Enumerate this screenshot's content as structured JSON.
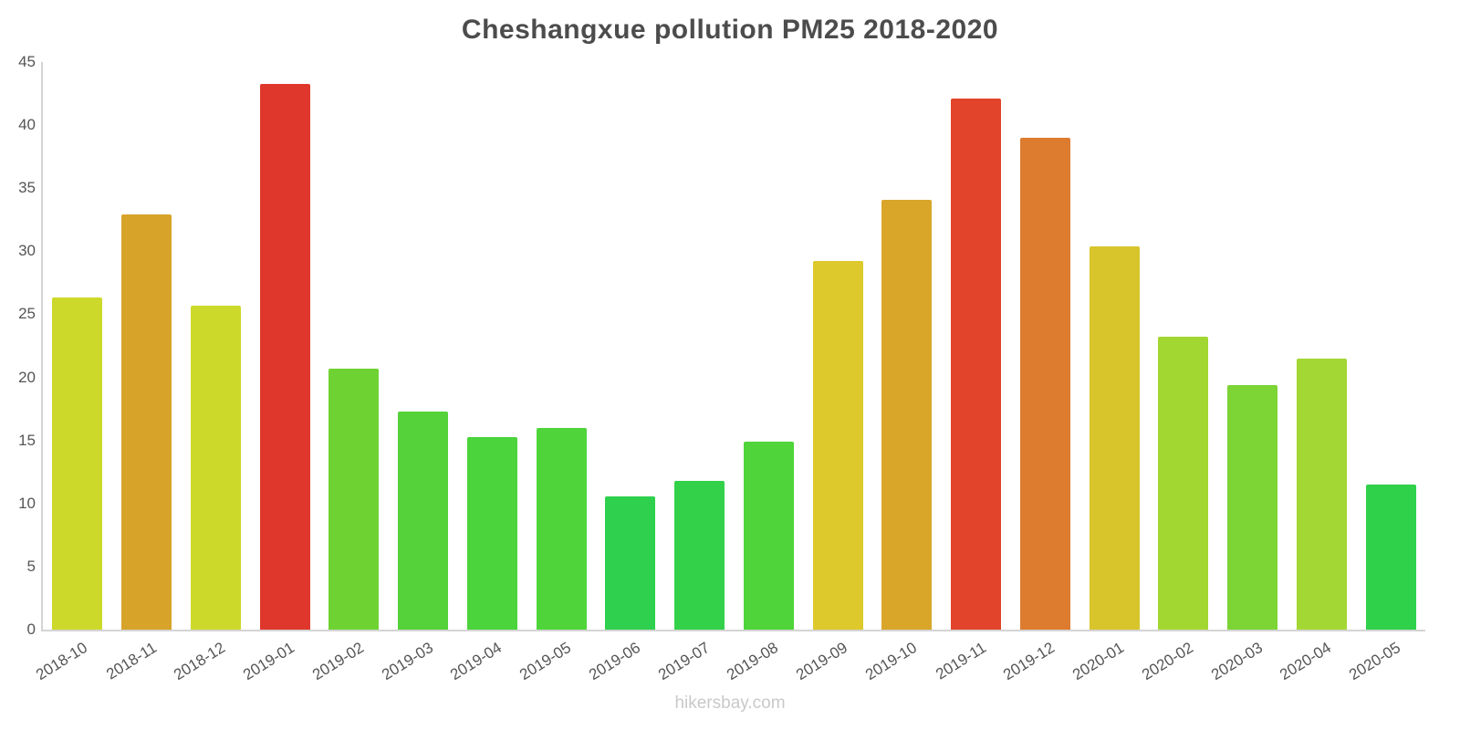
{
  "title": "Cheshangxue pollution PM25 2018-2020",
  "watermark": "hikersbay.com",
  "chart_data": {
    "type": "bar",
    "title": "Cheshangxue pollution PM25 2018-2020",
    "xlabel": "",
    "ylabel": "",
    "ylim": [
      0,
      45
    ],
    "yticks": [
      0,
      5,
      10,
      15,
      20,
      25,
      30,
      35,
      40,
      45
    ],
    "grid": false,
    "legend": "none",
    "categories": [
      "2018-10",
      "2018-11",
      "2018-12",
      "2019-01",
      "2019-02",
      "2019-03",
      "2019-04",
      "2019-05",
      "2019-06",
      "2019-07",
      "2019-08",
      "2019-09",
      "2019-10",
      "2019-11",
      "2019-12",
      "2020-01",
      "2020-02",
      "2020-03",
      "2020-04",
      "2020-05"
    ],
    "values": [
      26.3,
      32.9,
      25.7,
      43.3,
      20.7,
      17.3,
      15.3,
      16.0,
      10.6,
      11.8,
      14.9,
      29.2,
      34.1,
      42.1,
      39.0,
      30.4,
      23.2,
      19.4,
      21.5,
      11.5
    ],
    "colors": [
      "#cdd92a",
      "#d7a329",
      "#cdd92a",
      "#df372c",
      "#6fd233",
      "#55d23a",
      "#4bd43c",
      "#4fd53a",
      "#2ed04d",
      "#33d149",
      "#4fd53a",
      "#ddc92b",
      "#d9a62a",
      "#e2442b",
      "#dd7b2f",
      "#d8c52c",
      "#a2d731",
      "#7cd435",
      "#a3d733",
      "#2fd14b"
    ]
  }
}
